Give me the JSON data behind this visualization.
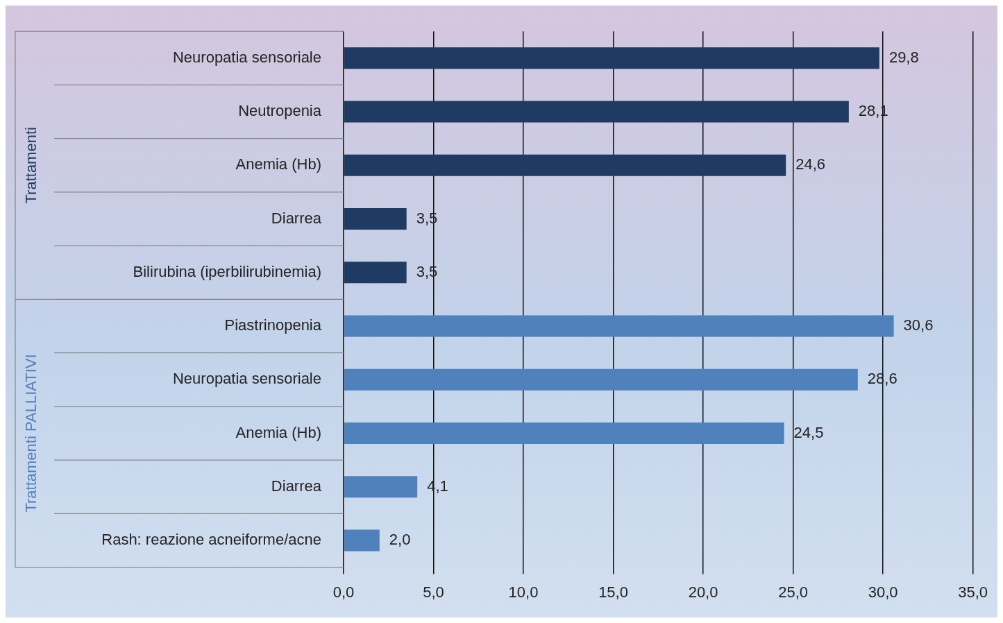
{
  "chart_data": {
    "type": "bar",
    "orientation": "horizontal",
    "categories": [
      "Neuropatia sensoriale",
      "Neutropenia",
      "Anemia (Hb)",
      "Diarrea",
      "Bilirubina (iperbilirubinemia)",
      "Piastrinopenia",
      "Neuropatia sensoriale",
      "Anemia (Hb)",
      "Diarrea",
      "Rash: reazione acneiforme/acne"
    ],
    "series": [
      {
        "name": "Trattamenti",
        "color": "#1f3b63",
        "values": [
          29.8,
          28.1,
          24.6,
          3.5,
          3.5,
          null,
          null,
          null,
          null,
          null
        ],
        "value_labels": [
          "29,8",
          "28,1",
          "24,6",
          "3,5",
          "3,5",
          null,
          null,
          null,
          null,
          null
        ]
      },
      {
        "name": "Trattamenti PALLIATIVI",
        "color": "#4f81bd",
        "values": [
          null,
          null,
          null,
          null,
          null,
          30.6,
          28.6,
          24.5,
          4.1,
          2.0
        ],
        "value_labels": [
          null,
          null,
          null,
          null,
          null,
          "30,6",
          "28,6",
          "24,5",
          "4,1",
          "2,0"
        ]
      }
    ],
    "xlim": [
      0,
      35
    ],
    "xticks": [
      {
        "value": 0,
        "label": "0,0"
      },
      {
        "value": 5,
        "label": "5,0"
      },
      {
        "value": 10,
        "label": "10,0"
      },
      {
        "value": 15,
        "label": "15,0"
      },
      {
        "value": 20,
        "label": "20,0"
      },
      {
        "value": 25,
        "label": "25,0"
      },
      {
        "value": 30,
        "label": "30,0"
      },
      {
        "value": 35,
        "label": "35,0"
      }
    ],
    "grid": "x",
    "legend": false
  }
}
